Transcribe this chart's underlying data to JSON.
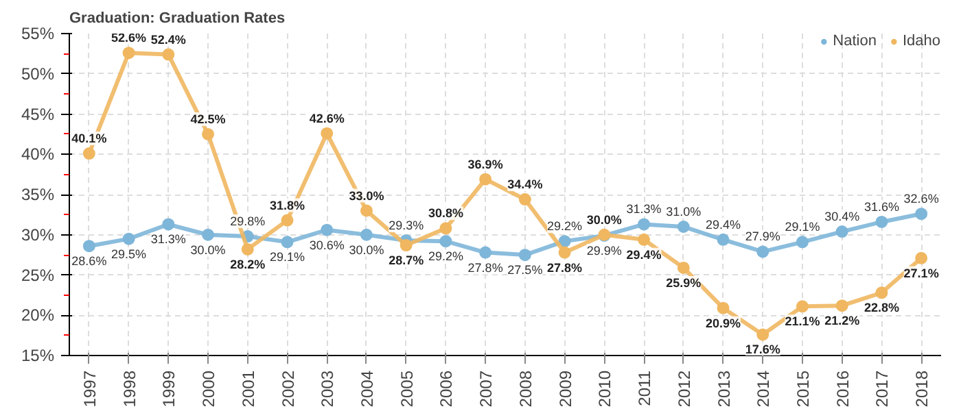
{
  "chart_data": {
    "type": "line",
    "title": "Graduation: Graduation Rates",
    "categories": [
      "1997",
      "1998",
      "1999",
      "2000",
      "2001",
      "2002",
      "2003",
      "2004",
      "2005",
      "2006",
      "2007",
      "2008",
      "2009",
      "2010",
      "2011",
      "2012",
      "2013",
      "2014",
      "2015",
      "2016",
      "2017",
      "2018"
    ],
    "series": [
      {
        "name": "Nation",
        "color": "#7eb6d9",
        "values": [
          28.6,
          29.5,
          31.3,
          30.0,
          29.8,
          29.1,
          30.6,
          30.0,
          29.3,
          29.2,
          27.8,
          27.5,
          29.2,
          29.9,
          31.3,
          31.0,
          29.4,
          27.9,
          29.1,
          30.4,
          31.6,
          32.6
        ],
        "value_labels": [
          "28.6%",
          "29.5%",
          "31.3%",
          "30.0%",
          "29.8%",
          "29.1%",
          "30.6%",
          "30.0%",
          "29.3%",
          "29.2%",
          "27.8%",
          "27.5%",
          "29.2%",
          "29.9%",
          "31.3%",
          "31.0%",
          "29.4%",
          "27.9%",
          "29.1%",
          "30.4%",
          "31.6%",
          "32.6%"
        ]
      },
      {
        "name": "Idaho",
        "color": "#f0b760",
        "values": [
          40.1,
          52.6,
          52.4,
          42.5,
          28.2,
          31.8,
          42.6,
          33.0,
          28.7,
          30.8,
          36.9,
          34.4,
          27.8,
          30.0,
          29.4,
          25.9,
          20.9,
          17.6,
          21.1,
          21.2,
          22.8,
          27.1
        ],
        "value_labels": [
          "40.1%",
          "52.6%",
          "52.4%",
          "42.5%",
          "28.2%",
          "31.8%",
          "42.6%",
          "33.0%",
          "28.7%",
          "30.8%",
          "36.9%",
          "34.4%",
          "27.8%",
          "30.0%",
          "29.4%",
          "25.9%",
          "20.9%",
          "17.6%",
          "21.1%",
          "21.2%",
          "22.8%",
          "27.1%"
        ]
      }
    ],
    "ylim": [
      15,
      55
    ],
    "yticks": [
      {
        "value": 15,
        "label": "15%"
      },
      {
        "value": 20,
        "label": "20%"
      },
      {
        "value": 25,
        "label": "25%"
      },
      {
        "value": 30,
        "label": "30%"
      },
      {
        "value": 35,
        "label": "35%"
      },
      {
        "value": 40,
        "label": "40%"
      },
      {
        "value": 45,
        "label": "45%"
      },
      {
        "value": 50,
        "label": "50%"
      },
      {
        "value": 55,
        "label": "55%"
      }
    ],
    "grid": true,
    "legend": "top right",
    "marker": "circle",
    "line_style": "solid"
  }
}
